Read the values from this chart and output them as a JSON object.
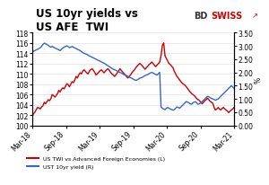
{
  "title": "US 10yr yields vs\nUS AFE  TWI",
  "title_fontsize": 8.5,
  "bdswiss_text": "BDSWISS",
  "arrow_char": "↗",
  "bg_color": "#ffffff",
  "plot_bg_color": "#ffffff",
  "grid_color": "#e0e0e0",
  "line1_color": "#cc0000",
  "line2_color": "#3366cc",
  "left_ylim": [
    100,
    118
  ],
  "left_yticks": [
    100,
    102,
    104,
    106,
    108,
    110,
    112,
    114,
    116,
    118
  ],
  "right_ylim": [
    0.0,
    3.5
  ],
  "right_yticks": [
    0.0,
    0.5,
    1.0,
    1.5,
    2.0,
    2.5,
    3.0,
    3.5
  ],
  "right_ylabel": "%",
  "legend1_label": "US TWI vs Advanced Foreign Economies (L)",
  "legend2_label": "UST 10yr yield (R)",
  "font_size": 6.0,
  "tick_font_size": 5.5,
  "twi_data": [
    101.8,
    102.3,
    102.6,
    103.1,
    103.5,
    103.4,
    103.2,
    103.6,
    103.8,
    104.5,
    104.2,
    104.6,
    105.0,
    104.8,
    105.2,
    106.0,
    105.8,
    105.5,
    105.8,
    106.2,
    106.8,
    106.5,
    107.0,
    107.3,
    107.1,
    107.6,
    108.1,
    107.9,
    107.5,
    108.0,
    108.5,
    108.3,
    108.8,
    109.5,
    109.2,
    109.8,
    110.2,
    110.0,
    110.5,
    110.8,
    110.5,
    110.2,
    110.0,
    110.5,
    110.8,
    111.0,
    110.7,
    110.3,
    109.8,
    110.0,
    110.3,
    110.6,
    110.8,
    110.5,
    110.2,
    110.5,
    110.8,
    111.0,
    110.7,
    110.3,
    110.0,
    109.8,
    109.5,
    109.8,
    110.2,
    110.5,
    111.0,
    110.7,
    110.4,
    110.1,
    109.8,
    109.5,
    109.2,
    109.5,
    109.8,
    110.2,
    110.5,
    110.8,
    111.2,
    111.5,
    111.8,
    112.0,
    111.8,
    111.5,
    111.2,
    110.9,
    111.2,
    111.5,
    111.8,
    112.0,
    112.3,
    112.0,
    111.7,
    111.4,
    111.7,
    112.0,
    112.3,
    113.5,
    115.5,
    116.0,
    113.5,
    113.0,
    112.5,
    112.0,
    111.8,
    111.5,
    111.2,
    110.5,
    110.0,
    109.5,
    109.2,
    108.8,
    108.5,
    108.2,
    108.0,
    107.8,
    107.5,
    107.2,
    106.8,
    106.5,
    106.2,
    106.0,
    105.8,
    105.5,
    105.2,
    105.0,
    104.8,
    104.5,
    104.2,
    104.5,
    104.8,
    105.0,
    105.3,
    105.0,
    104.7,
    104.5,
    104.3,
    103.5,
    103.0,
    103.2,
    103.5,
    103.2,
    103.0,
    103.3,
    103.5,
    103.2,
    103.0,
    102.8,
    102.5,
    102.8,
    103.0,
    103.2,
    103.5
  ],
  "yield_data": [
    2.75,
    2.8,
    2.82,
    2.85,
    2.87,
    2.9,
    2.93,
    2.98,
    3.05,
    3.1,
    3.08,
    3.05,
    3.02,
    2.98,
    2.95,
    2.98,
    2.95,
    2.92,
    2.9,
    2.87,
    2.85,
    2.82,
    2.88,
    2.92,
    2.95,
    2.98,
    3.0,
    2.97,
    2.93,
    2.95,
    2.98,
    2.95,
    2.92,
    2.9,
    2.87,
    2.85,
    2.82,
    2.78,
    2.75,
    2.72,
    2.7,
    2.68,
    2.65,
    2.62,
    2.6,
    2.57,
    2.55,
    2.52,
    2.5,
    2.47,
    2.45,
    2.42,
    2.4,
    2.37,
    2.35,
    2.32,
    2.28,
    2.25,
    2.22,
    2.18,
    2.15,
    2.12,
    2.1,
    2.08,
    2.05,
    2.02,
    2.0,
    1.98,
    1.95,
    1.92,
    1.9,
    1.88,
    1.85,
    1.82,
    1.8,
    1.78,
    1.75,
    1.72,
    1.7,
    1.72,
    1.75,
    1.78,
    1.8,
    1.82,
    1.85,
    1.88,
    1.9,
    1.92,
    1.95,
    1.98,
    2.0,
    1.98,
    1.95,
    1.92,
    1.9,
    1.95,
    2.0,
    0.7,
    0.65,
    0.62,
    0.6,
    0.65,
    0.68,
    0.65,
    0.62,
    0.6,
    0.58,
    0.6,
    0.65,
    0.7,
    0.68,
    0.65,
    0.7,
    0.75,
    0.8,
    0.85,
    0.9,
    0.88,
    0.85,
    0.82,
    0.8,
    0.85,
    0.88,
    0.9,
    0.85,
    0.8,
    0.82,
    0.85,
    0.9,
    0.95,
    1.0,
    1.05,
    1.1,
    1.08,
    1.05,
    1.02,
    1.0,
    0.98,
    0.95,
    0.98,
    1.0,
    1.05,
    1.1,
    1.15,
    1.2,
    1.25,
    1.3,
    1.35,
    1.4,
    1.45,
    1.5,
    1.45,
    1.4
  ],
  "x_tick_labels": [
    "Mar-18",
    "Sep-18",
    "Mar-19",
    "Sep-19",
    "Mar-20",
    "Sep-20",
    "Mar-21"
  ],
  "x_tick_positions": [
    0,
    6,
    12,
    18,
    24,
    30,
    36
  ]
}
